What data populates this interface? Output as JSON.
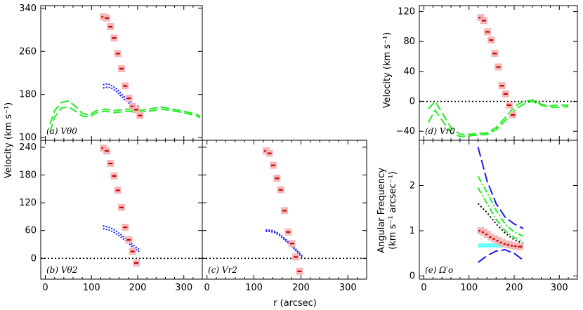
{
  "figure": {
    "xlabel": "r (arcsec)",
    "ylabel_left": "Velocity (km s⁻¹)",
    "ylabel_right_top": "Velocity (km s⁻¹)",
    "ylabel_right_bottom_line1": "Angular Frequency",
    "ylabel_right_bottom_line2": "(km s⁻¹ arcsec⁻¹)"
  },
  "colors": {
    "data_box": "#f4b8b8",
    "data_mark": "#cc0000",
    "green": "#22ee22",
    "blue": "#1a1aee",
    "cyan": "#66ffff",
    "zero": "#000000"
  },
  "chart_data": [
    {
      "id": "a",
      "type": "line",
      "label": "(a) Vθ0",
      "xlim": [
        -10,
        340
      ],
      "ylim": [
        95,
        345
      ],
      "xticks": [
        0,
        100,
        200,
        300
      ],
      "yticks": [
        100,
        180,
        260,
        340
      ],
      "show_xtick_labels": false,
      "show_ytick_labels": true,
      "zero_line": false,
      "points": [
        {
          "x": 126,
          "y": 324
        },
        {
          "x": 133,
          "y": 322
        },
        {
          "x": 141,
          "y": 306
        },
        {
          "x": 149,
          "y": 285
        },
        {
          "x": 157,
          "y": 256
        },
        {
          "x": 165,
          "y": 228
        },
        {
          "x": 173,
          "y": 196
        },
        {
          "x": 181,
          "y": 173
        },
        {
          "x": 189,
          "y": 158
        },
        {
          "x": 197,
          "y": 152
        },
        {
          "x": 205,
          "y": 141
        }
      ],
      "green_curves": [
        {
          "x": [
            10,
            20,
            35,
            50,
            65,
            80,
            95,
            110,
            130,
            150,
            175,
            200,
            225,
            250,
            275,
            300,
            325,
            335
          ],
          "y": [
            125,
            150,
            165,
            168,
            158,
            145,
            142,
            150,
            153,
            150,
            153,
            150,
            153,
            157,
            153,
            149,
            144,
            140
          ]
        },
        {
          "x": [
            10,
            20,
            35,
            50,
            65,
            80,
            95,
            110,
            130,
            150,
            175,
            200,
            225,
            250,
            275,
            300,
            325,
            335
          ],
          "y": [
            110,
            138,
            155,
            157,
            149,
            140,
            138,
            146,
            149,
            146,
            149,
            147,
            149,
            153,
            150,
            146,
            141,
            137
          ]
        }
      ],
      "blue_curves": [
        {
          "x": [
            125,
            135,
            145,
            155,
            165,
            175,
            185,
            195,
            205
          ],
          "y": [
            198,
            200,
            196,
            190,
            181,
            172,
            166,
            160,
            157
          ]
        },
        {
          "x": [
            125,
            135,
            145,
            155,
            165,
            175,
            185,
            195,
            205
          ],
          "y": [
            192,
            194,
            191,
            185,
            176,
            168,
            161,
            156,
            153
          ]
        }
      ],
      "cyan_band": null,
      "black_dotted": null
    },
    {
      "id": "b",
      "type": "line",
      "label": "(b) Vθ2",
      "xlim": [
        -10,
        340
      ],
      "ylim": [
        -45,
        255
      ],
      "xticks": [
        0,
        100,
        200,
        300
      ],
      "yticks": [
        0,
        60,
        120,
        180,
        240
      ],
      "show_xtick_labels": true,
      "show_ytick_labels": true,
      "zero_line": true,
      "points": [
        {
          "x": 126,
          "y": 238
        },
        {
          "x": 133,
          "y": 232
        },
        {
          "x": 141,
          "y": 205
        },
        {
          "x": 149,
          "y": 178
        },
        {
          "x": 157,
          "y": 147
        },
        {
          "x": 165,
          "y": 110
        },
        {
          "x": 173,
          "y": 67
        },
        {
          "x": 181,
          "y": 40
        },
        {
          "x": 189,
          "y": 15
        },
        {
          "x": 197,
          "y": -10
        }
      ],
      "green_curves": [],
      "blue_curves": [
        {
          "x": [
            125,
            135,
            145,
            155,
            165,
            175,
            185,
            195,
            205
          ],
          "y": [
            70,
            68,
            64,
            58,
            50,
            42,
            33,
            25,
            18
          ]
        },
        {
          "x": [
            125,
            135,
            145,
            155,
            165,
            175,
            185,
            195,
            205
          ],
          "y": [
            64,
            62,
            58,
            52,
            45,
            37,
            28,
            20,
            13
          ]
        }
      ],
      "cyan_band": null,
      "black_dotted": null
    },
    {
      "id": "c",
      "type": "line",
      "label": "(c) Vr2",
      "xlim": [
        -10,
        340
      ],
      "ylim": [
        -45,
        255
      ],
      "xticks": [
        0,
        100,
        200,
        300
      ],
      "yticks": [
        0,
        60,
        120,
        180,
        240
      ],
      "show_xtick_labels": true,
      "show_ytick_labels": false,
      "zero_line": true,
      "points": [
        {
          "x": 126,
          "y": 232
        },
        {
          "x": 133,
          "y": 227
        },
        {
          "x": 141,
          "y": 201
        },
        {
          "x": 149,
          "y": 173
        },
        {
          "x": 157,
          "y": 148
        },
        {
          "x": 165,
          "y": 103
        },
        {
          "x": 173,
          "y": 57
        },
        {
          "x": 181,
          "y": 32
        },
        {
          "x": 189,
          "y": 3
        },
        {
          "x": 197,
          "y": -28
        }
      ],
      "green_curves": [],
      "blue_curves": [
        {
          "x": [
            125,
            135,
            145,
            155,
            165,
            175,
            185,
            195,
            205
          ],
          "y": [
            61,
            61,
            58,
            52,
            43,
            34,
            24,
            13,
            3
          ]
        },
        {
          "x": [
            125,
            135,
            145,
            155,
            165,
            175,
            185,
            195,
            205
          ],
          "y": [
            58,
            58,
            55,
            49,
            40,
            31,
            21,
            10,
            0
          ]
        }
      ],
      "cyan_band": null,
      "black_dotted": null
    },
    {
      "id": "d",
      "type": "line",
      "label": "(d) Vr0",
      "xlim": [
        -10,
        340
      ],
      "ylim": [
        -52,
        128
      ],
      "xticks": [
        0,
        100,
        200,
        300
      ],
      "yticks": [
        -40,
        0,
        40,
        80,
        120
      ],
      "show_xtick_labels": false,
      "show_ytick_labels": true,
      "zero_line": true,
      "points": [
        {
          "x": 126,
          "y": 112
        },
        {
          "x": 133,
          "y": 108
        },
        {
          "x": 141,
          "y": 93
        },
        {
          "x": 149,
          "y": 82
        },
        {
          "x": 157,
          "y": 64
        },
        {
          "x": 165,
          "y": 46
        },
        {
          "x": 173,
          "y": 21
        },
        {
          "x": 181,
          "y": 10
        },
        {
          "x": 189,
          "y": -5
        },
        {
          "x": 197,
          "y": -18
        }
      ],
      "green_curves": [
        {
          "x": [
            10,
            25,
            40,
            60,
            80,
            100,
            120,
            140,
            160,
            180,
            200,
            220,
            240,
            260,
            280,
            300,
            320
          ],
          "y": [
            -10,
            0,
            -15,
            -35,
            -44,
            -44,
            -43,
            -42,
            -35,
            -22,
            -7,
            0,
            2,
            -4,
            -6,
            -5,
            -5
          ]
        },
        {
          "x": [
            10,
            25,
            40,
            60,
            80,
            100,
            120,
            140,
            160,
            180,
            200,
            220,
            240,
            260,
            280,
            300,
            320
          ],
          "y": [
            -28,
            -12,
            -25,
            -42,
            -47,
            -46,
            -45,
            -44,
            -38,
            -26,
            -12,
            -4,
            0,
            -5,
            -8,
            -8,
            -7
          ]
        }
      ],
      "blue_curves": [],
      "cyan_band": null,
      "black_dotted": null
    },
    {
      "id": "e",
      "type": "line",
      "label": "(e) Ω′o",
      "xlim": [
        -10,
        340
      ],
      "ylim": [
        -0.07,
        3.0
      ],
      "xticks": [
        0,
        100,
        200,
        300
      ],
      "yticks": [
        0,
        1,
        2
      ],
      "show_xtick_labels": true,
      "show_ytick_labels": true,
      "zero_line": false,
      "points": [
        {
          "x": 126,
          "y": 1.0
        },
        {
          "x": 133,
          "y": 0.97
        },
        {
          "x": 141,
          "y": 0.92
        },
        {
          "x": 149,
          "y": 0.86
        },
        {
          "x": 157,
          "y": 0.82
        },
        {
          "x": 165,
          "y": 0.78
        },
        {
          "x": 173,
          "y": 0.74
        },
        {
          "x": 181,
          "y": 0.71
        },
        {
          "x": 189,
          "y": 0.69
        },
        {
          "x": 197,
          "y": 0.67
        },
        {
          "x": 205,
          "y": 0.66
        },
        {
          "x": 213,
          "y": 0.65
        }
      ],
      "green_curves": [
        {
          "x": [
            120,
            140,
            160,
            180,
            200,
            220
          ],
          "y": [
            2.2,
            1.85,
            1.45,
            1.15,
            0.97,
            0.88
          ]
        },
        {
          "x": [
            120,
            140,
            160,
            180,
            200,
            220
          ],
          "y": [
            1.95,
            1.6,
            1.25,
            1.0,
            0.85,
            0.76
          ]
        }
      ],
      "blue_curves": [
        {
          "x": [
            120,
            140,
            160,
            180,
            200,
            220
          ],
          "y": [
            2.85,
            2.1,
            1.6,
            1.3,
            1.15,
            1.05
          ]
        },
        {
          "x": [
            120,
            140,
            160,
            180,
            200,
            220
          ],
          "y": [
            0.3,
            0.45,
            0.55,
            0.58,
            0.5,
            0.35
          ]
        }
      ],
      "cyan_band": {
        "x": [
          120,
          220
        ],
        "y": [
          0.63,
          0.72
        ]
      },
      "black_dotted": {
        "x": [
          120,
          140,
          160,
          180,
          200,
          220
        ],
        "y": [
          1.6,
          1.4,
          1.15,
          0.95,
          0.8,
          0.72
        ]
      }
    }
  ]
}
